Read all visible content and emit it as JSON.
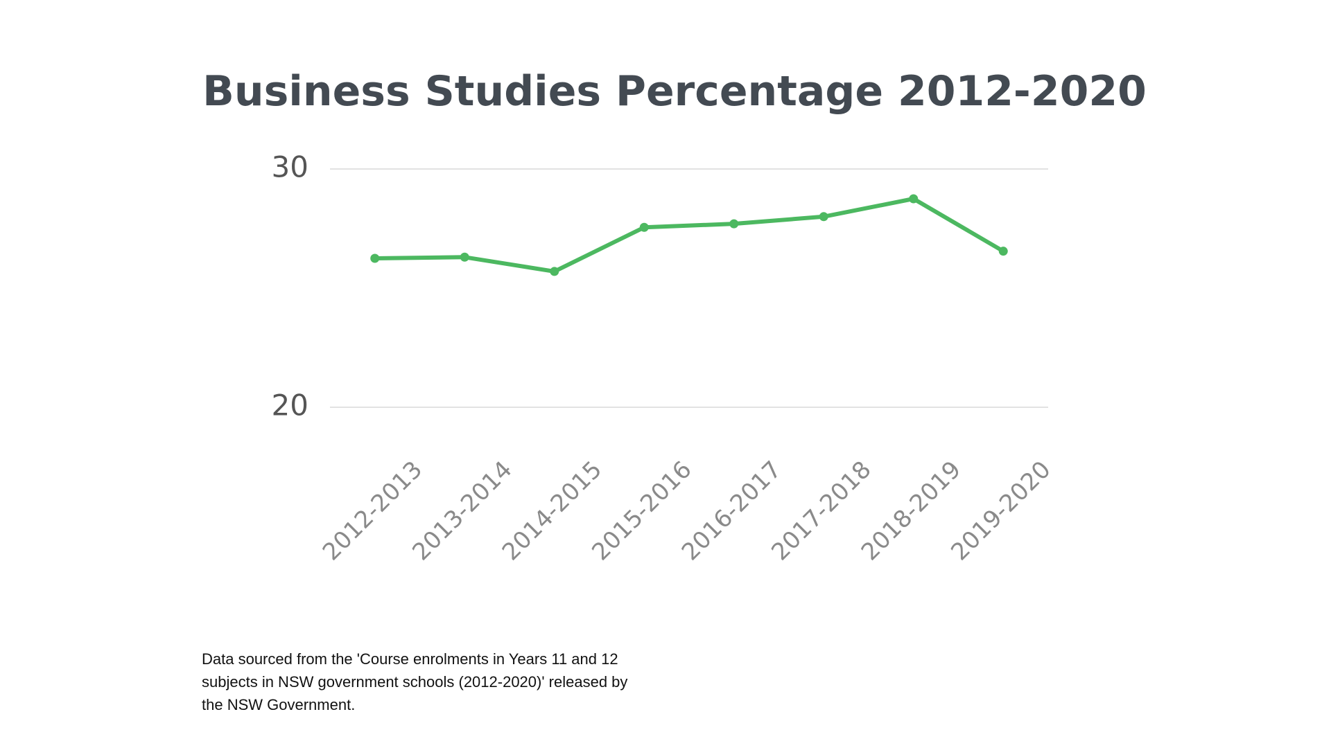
{
  "chart_data": {
    "type": "line",
    "title": "Business Studies Percentage 2012-2020",
    "categories": [
      "2012-2013",
      "2013-2014",
      "2014-2015",
      "2015-2016",
      "2016-2017",
      "2017-2018",
      "2018-2019",
      "2019-2020"
    ],
    "series": [
      {
        "name": "Business Studies",
        "color": "#4cb860",
        "values": [
          26.25,
          26.3,
          25.7,
          27.55,
          27.7,
          28.0,
          28.75,
          26.55
        ]
      }
    ],
    "ylim": [
      20,
      30
    ],
    "yticks": [
      20,
      30
    ],
    "grid": true,
    "note": [
      "Data sourced from the 'Course enrolments in Years 11 and 12",
      "subjects in NSW government schools (2012-2020)' released by",
      "the NSW Government."
    ]
  }
}
